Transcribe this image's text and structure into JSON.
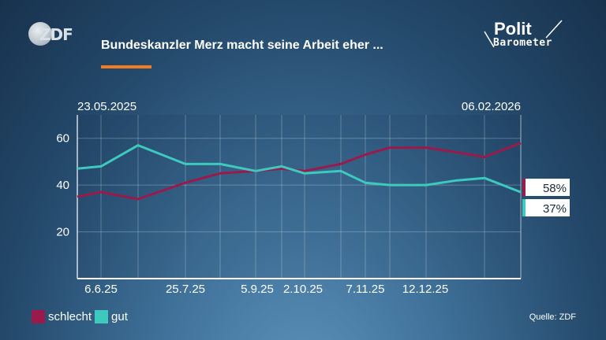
{
  "header": {
    "logo_text": "ZDF",
    "title": "Bundeskanzler Merz macht seine Arbeit eher ...",
    "brand_line1": "Polit",
    "brand_line2": "Barometer"
  },
  "dates": {
    "start": "23.05.2025",
    "end": "06.02.2026"
  },
  "source": "Quelle: ZDF",
  "colors": {
    "schlecht": "#9a1b4b",
    "gut": "#3ec9bf",
    "accent": "#f07d1f"
  },
  "chart_data": {
    "type": "line",
    "x": [
      "23.5.25",
      "6.6.25",
      "20.6.25",
      "11.7.25",
      "25.7.25",
      "15.8.25",
      "5.9.25",
      "19.9.25",
      "2.10.25",
      "17.10.25",
      "7.11.25",
      "21.11.25",
      "12.12.25",
      "16.1.26",
      "6.2.26"
    ],
    "series": [
      {
        "name": "schlecht",
        "values": [
          35,
          37,
          34,
          41,
          45,
          46,
          47,
          46,
          49,
          53,
          56,
          56,
          54,
          52,
          58
        ]
      },
      {
        "name": "gut",
        "values": [
          47,
          48,
          57,
          49,
          49,
          46,
          48,
          45,
          46,
          41,
          40,
          40,
          42,
          43,
          37
        ]
      }
    ],
    "yticks": [
      20,
      40,
      60
    ],
    "ylim": [
      0,
      70
    ],
    "xtick_labels": [
      "6.6.25",
      "25.7.25",
      "5.9.25",
      "2.10.25",
      "7.11.25",
      "12.12.25"
    ],
    "end_labels": [
      {
        "series": "schlecht",
        "text": "58%"
      },
      {
        "series": "gut",
        "text": "37%"
      }
    ],
    "legend": [
      "schlecht",
      "gut"
    ],
    "legend_position": "bottom-left",
    "grid": true
  }
}
